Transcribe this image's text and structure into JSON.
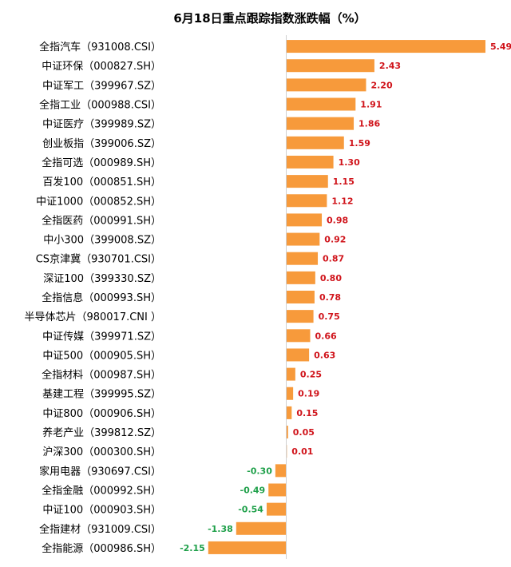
{
  "chart_data": {
    "type": "bar",
    "orientation": "horizontal",
    "title": "6月18日重点跟踪指数涨跌幅（%）",
    "xlabel": "",
    "ylabel": "",
    "xlim": [
      -2.15,
      5.49
    ],
    "grid": false,
    "legend": "none",
    "colors": {
      "bar": "#F79A3B",
      "positive_label": "#D0141B",
      "negative_label": "#1FA04A"
    },
    "categories": [
      "全指汽车（931008.CSI）",
      "中证环保（000827.SH）",
      "中证军工（399967.SZ）",
      "全指工业（000988.CSI）",
      "中证医疗（399989.SZ）",
      "创业板指（399006.SZ）",
      "全指可选（000989.SH）",
      "百发100（000851.SH）",
      "中证1000（000852.SH）",
      "全指医药（000991.SH）",
      "中小300（399008.SZ）",
      "CS京津冀（930701.CSI）",
      "深证100（399330.SZ）",
      "全指信息（000993.SH）",
      "半导体芯片（980017.CNI ）",
      "中证传媒（399971.SZ）",
      "中证500（000905.SH）",
      "全指材料（000987.SH）",
      "基建工程（399995.SZ）",
      "中证800（000906.SH）",
      "养老产业（399812.SZ）",
      "沪深300（000300.SH）",
      "家用电器（930697.CSI）",
      "全指金融（000992.SH）",
      "中证100（000903.SH）",
      "全指建材（931009.CSI）",
      "全指能源（000986.SH）"
    ],
    "values": [
      5.49,
      2.43,
      2.2,
      1.91,
      1.86,
      1.59,
      1.3,
      1.15,
      1.12,
      0.98,
      0.92,
      0.87,
      0.8,
      0.78,
      0.75,
      0.66,
      0.63,
      0.25,
      0.19,
      0.15,
      0.05,
      0.01,
      -0.3,
      -0.49,
      -0.54,
      -1.38,
      -2.15
    ],
    "value_labels": [
      "5.49",
      "2.43",
      "2.20",
      "1.91",
      "1.86",
      "1.59",
      "1.30",
      "1.15",
      "1.12",
      "0.98",
      "0.92",
      "0.87",
      "0.80",
      "0.78",
      "0.75",
      "0.66",
      "0.63",
      "0.25",
      "0.19",
      "0.15",
      "0.05",
      "0.01",
      "-0.30",
      "-0.49",
      "-0.54",
      "-1.38",
      "-2.15"
    ]
  }
}
